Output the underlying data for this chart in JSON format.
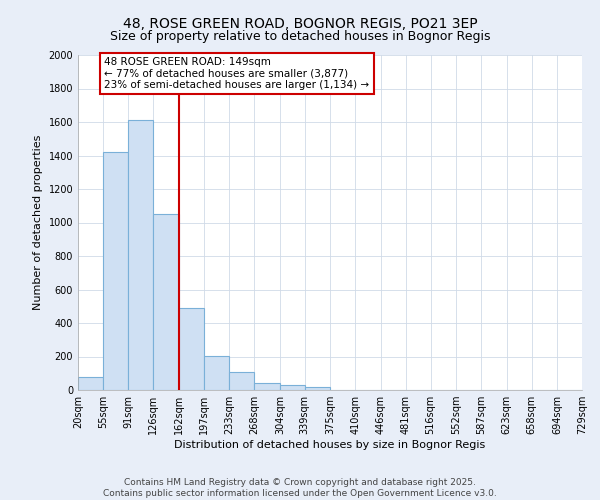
{
  "title": "48, ROSE GREEN ROAD, BOGNOR REGIS, PO21 3EP",
  "subtitle": "Size of property relative to detached houses in Bognor Regis",
  "xlabel": "Distribution of detached houses by size in Bognor Regis",
  "ylabel": "Number of detached properties",
  "bar_values": [
    80,
    1420,
    1610,
    1050,
    490,
    205,
    105,
    40,
    30,
    20,
    0,
    0,
    0,
    0,
    0,
    0,
    0,
    0,
    0,
    0
  ],
  "bin_labels": [
    "20sqm",
    "55sqm",
    "91sqm",
    "126sqm",
    "162sqm",
    "197sqm",
    "233sqm",
    "268sqm",
    "304sqm",
    "339sqm",
    "375sqm",
    "410sqm",
    "446sqm",
    "481sqm",
    "516sqm",
    "552sqm",
    "587sqm",
    "623sqm",
    "658sqm",
    "694sqm",
    "729sqm"
  ],
  "bar_color": "#cfe0f3",
  "bar_edge_color": "#7ab0d8",
  "plot_bg_color": "#ffffff",
  "fig_bg_color": "#e8eef8",
  "grid_color": "#d0dae8",
  "vline_color": "#cc0000",
  "annotation_text": "48 ROSE GREEN ROAD: 149sqm\n← 77% of detached houses are smaller (3,877)\n23% of semi-detached houses are larger (1,134) →",
  "annotation_box_color": "#ffffff",
  "annotation_box_edge": "#cc0000",
  "bin_edges": [
    20,
    55,
    91,
    126,
    162,
    197,
    233,
    268,
    304,
    339,
    375,
    410,
    446,
    481,
    516,
    552,
    587,
    623,
    658,
    694,
    729
  ],
  "vline_bin_edge": 162,
  "ylim": [
    0,
    2000
  ],
  "yticks": [
    0,
    200,
    400,
    600,
    800,
    1000,
    1200,
    1400,
    1600,
    1800,
    2000
  ],
  "footer_text": "Contains HM Land Registry data © Crown copyright and database right 2025.\nContains public sector information licensed under the Open Government Licence v3.0.",
  "title_fontsize": 10,
  "subtitle_fontsize": 9,
  "label_fontsize": 8,
  "tick_fontsize": 7,
  "annot_fontsize": 7.5,
  "footer_fontsize": 6.5
}
